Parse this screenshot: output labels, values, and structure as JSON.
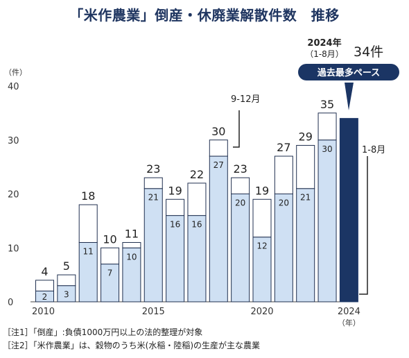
{
  "chart_data": {
    "type": "bar",
    "title": "「米作農業」倒産・休廃業解散件数　推移",
    "ylabel": "（件）",
    "xlabel": "（年）",
    "ylim": [
      0,
      40
    ],
    "yticks": [
      0,
      10,
      20,
      30,
      40
    ],
    "x_tick_labels": [
      "2010",
      "2015",
      "2020",
      "2024"
    ],
    "x": [
      2010,
      2011,
      2012,
      2013,
      2014,
      2015,
      2016,
      2017,
      2018,
      2019,
      2020,
      2021,
      2022,
      2023,
      2024
    ],
    "totals": [
      4,
      5,
      18,
      10,
      11,
      23,
      19,
      22,
      30,
      23,
      19,
      27,
      29,
      35,
      null
    ],
    "series": [
      {
        "name": "1-8月",
        "values": [
          2,
          3,
          11,
          7,
          10,
          21,
          16,
          16,
          27,
          20,
          12,
          20,
          21,
          30,
          34
        ]
      },
      {
        "name": "9-12月",
        "values": [
          2,
          2,
          7,
          3,
          1,
          2,
          3,
          6,
          3,
          3,
          7,
          7,
          8,
          5,
          null
        ]
      }
    ],
    "annotations": {
      "label_9_12": "9-12月",
      "label_1_8": "1-8月",
      "year2024": "2024年",
      "year2024_sub": "（1-8月）",
      "value2024": "34件",
      "badge": "過去最多ペース"
    },
    "colors": {
      "bar_1_8": "#cfe0f3",
      "bar_9_12": "#ffffff",
      "bar_2024": "#1b3564",
      "outline": "#1f2f4f",
      "title": "#1f3560"
    }
  },
  "notes": [
    "［注1］「倒産」:負債1000万円以上の法的整理が対象",
    "［注2］「米作農業」は、穀物のうち米(水稲・陸稲)の生産が主な農業"
  ]
}
